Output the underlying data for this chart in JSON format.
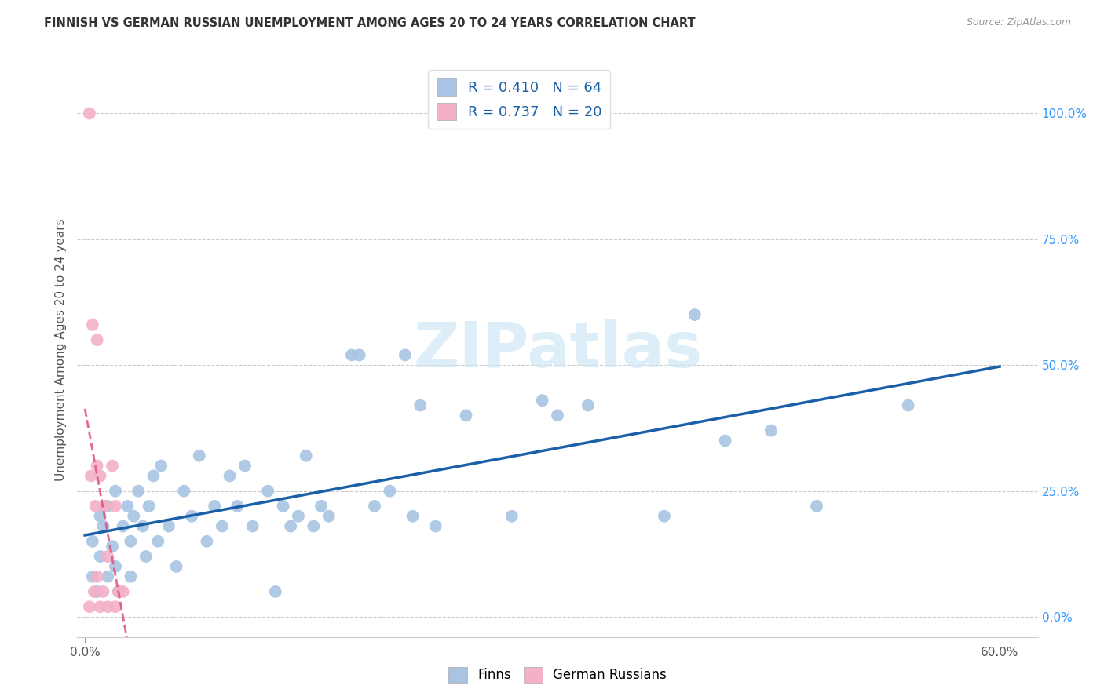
{
  "title": "FINNISH VS GERMAN RUSSIAN UNEMPLOYMENT AMONG AGES 20 TO 24 YEARS CORRELATION CHART",
  "source": "Source: ZipAtlas.com",
  "ylabel": "Unemployment Among Ages 20 to 24 years",
  "right_ytick_labels": [
    "0.0%",
    "25.0%",
    "50.0%",
    "75.0%",
    "100.0%"
  ],
  "right_ytick_vals": [
    0.0,
    0.25,
    0.5,
    0.75,
    1.0
  ],
  "xlim": [
    -0.005,
    0.625
  ],
  "ylim": [
    -0.04,
    1.1
  ],
  "finn_R": 0.41,
  "finn_N": 64,
  "gr_R": 0.737,
  "gr_N": 20,
  "finn_scatter_color": "#a8c4e2",
  "finn_line_color": "#1a5fa8",
  "gr_scatter_color": "#f4b0c8",
  "gr_line_color": "#e0507a",
  "watermark_text": "ZIPatlas",
  "watermark_color": "#cce5f5",
  "grid_color": "#cccccc",
  "finn_points_x": [
    0.005,
    0.005,
    0.008,
    0.01,
    0.01,
    0.012,
    0.015,
    0.015,
    0.018,
    0.02,
    0.02,
    0.022,
    0.025,
    0.028,
    0.03,
    0.03,
    0.032,
    0.035,
    0.038,
    0.04,
    0.042,
    0.045,
    0.048,
    0.05,
    0.055,
    0.06,
    0.065,
    0.07,
    0.075,
    0.08,
    0.085,
    0.09,
    0.095,
    0.1,
    0.105,
    0.11,
    0.12,
    0.125,
    0.13,
    0.135,
    0.14,
    0.145,
    0.15,
    0.155,
    0.16,
    0.175,
    0.18,
    0.19,
    0.2,
    0.21,
    0.215,
    0.22,
    0.23,
    0.25,
    0.28,
    0.3,
    0.31,
    0.33,
    0.38,
    0.4,
    0.42,
    0.45,
    0.48,
    0.54
  ],
  "finn_points_y": [
    0.08,
    0.15,
    0.05,
    0.2,
    0.12,
    0.18,
    0.22,
    0.08,
    0.14,
    0.1,
    0.25,
    0.05,
    0.18,
    0.22,
    0.15,
    0.08,
    0.2,
    0.25,
    0.18,
    0.12,
    0.22,
    0.28,
    0.15,
    0.3,
    0.18,
    0.1,
    0.25,
    0.2,
    0.32,
    0.15,
    0.22,
    0.18,
    0.28,
    0.22,
    0.3,
    0.18,
    0.25,
    0.05,
    0.22,
    0.18,
    0.2,
    0.32,
    0.18,
    0.22,
    0.2,
    0.52,
    0.52,
    0.22,
    0.25,
    0.52,
    0.2,
    0.42,
    0.18,
    0.4,
    0.2,
    0.43,
    0.4,
    0.42,
    0.2,
    0.6,
    0.35,
    0.37,
    0.22,
    0.42
  ],
  "gr_points_x": [
    0.003,
    0.004,
    0.005,
    0.006,
    0.007,
    0.008,
    0.008,
    0.01,
    0.01,
    0.012,
    0.013,
    0.015,
    0.015,
    0.018,
    0.02,
    0.02,
    0.022,
    0.025,
    0.003,
    0.008
  ],
  "gr_points_y": [
    0.02,
    0.28,
    0.58,
    0.05,
    0.22,
    0.08,
    0.3,
    0.02,
    0.28,
    0.05,
    0.22,
    0.02,
    0.12,
    0.3,
    0.02,
    0.22,
    0.05,
    0.05,
    1.0,
    0.55
  ]
}
